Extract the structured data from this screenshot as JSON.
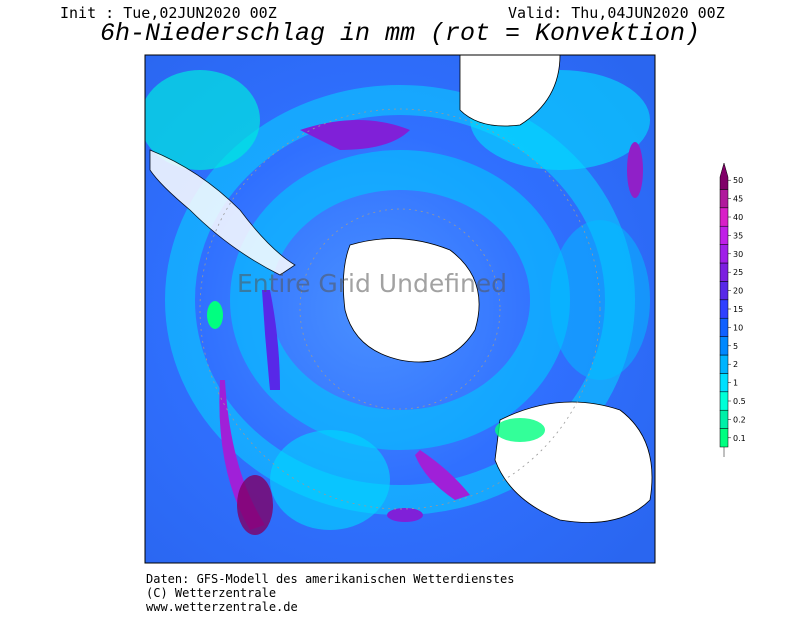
{
  "header": {
    "init": "Init : Tue,02JUN2020 00Z",
    "valid": "Valid: Thu,04JUN2020 00Z",
    "title": "6h-Niederschlag in mm (rot = Konvektion)"
  },
  "map": {
    "overlay": "Entire Grid Undefined"
  },
  "legend": {
    "levels": [
      {
        "label": "0.1",
        "color": "#00ff80"
      },
      {
        "label": "0.2",
        "color": "#00f0a8"
      },
      {
        "label": "0.5",
        "color": "#00ffd8"
      },
      {
        "label": "1",
        "color": "#00e0ff"
      },
      {
        "label": "2",
        "color": "#00b4ff"
      },
      {
        "label": "5",
        "color": "#0088ff"
      },
      {
        "label": "10",
        "color": "#1060ff"
      },
      {
        "label": "15",
        "color": "#3040ff"
      },
      {
        "label": "20",
        "color": "#5828e8"
      },
      {
        "label": "25",
        "color": "#7c20e0"
      },
      {
        "label": "30",
        "color": "#a020e8"
      },
      {
        "label": "35",
        "color": "#c020e8"
      },
      {
        "label": "40",
        "color": "#d820c8"
      },
      {
        "label": "45",
        "color": "#b0189c"
      },
      {
        "label": "50",
        "color": "#800068"
      }
    ]
  },
  "footer": {
    "lines": [
      "Daten: GFS-Modell des amerikanischen Wetterdienstes",
      "(C) Wetterzentrale",
      "www.wetterzentrale.de"
    ]
  }
}
